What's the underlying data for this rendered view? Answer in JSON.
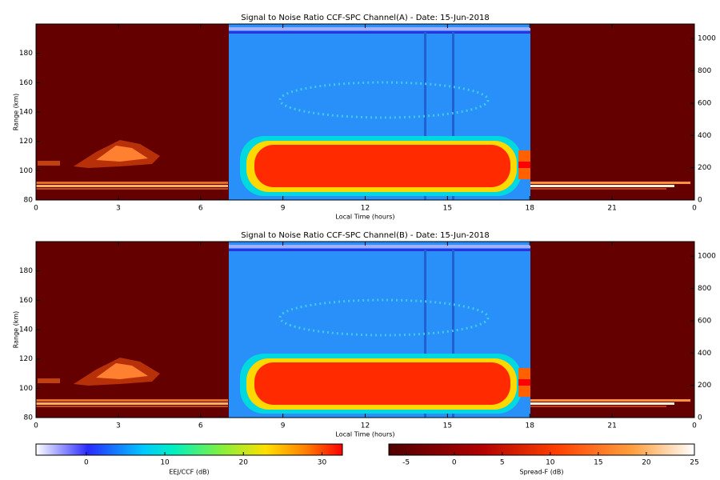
{
  "chart_data": [
    {
      "type": "heatmap",
      "title": "Signal to Noise Ratio CCF-SPC Channel(A) - Date: 15-Jun-2018",
      "xlabel": "Local Time (hours)",
      "ylabel": "Range (km)",
      "xlim": [
        0,
        24
      ],
      "xticks": [
        0,
        3,
        6,
        9,
        12,
        15,
        18,
        21,
        {
          "value": 24,
          "label": "0"
        }
      ],
      "ylim": [
        80,
        200
      ],
      "yticks": [
        80,
        100,
        120,
        140,
        160,
        180
      ],
      "y2lim": [
        0,
        1090
      ],
      "y2ticks": [
        0,
        200,
        400,
        600,
        800,
        1000
      ]
    },
    {
      "type": "heatmap",
      "title": "Signal to Noise Ratio CCF-SPC Channel(B) - Date: 15-Jun-2018",
      "xlabel": "Local Time (hours)",
      "ylabel": "Range (km)",
      "xlim": [
        0,
        24
      ],
      "xticks": [
        0,
        3,
        6,
        9,
        12,
        15,
        18,
        21,
        {
          "value": 24,
          "label": "0"
        }
      ],
      "ylim": [
        80,
        200
      ],
      "yticks": [
        80,
        100,
        120,
        140,
        160,
        180
      ],
      "y2lim": [
        0,
        1090
      ],
      "y2ticks": [
        0,
        200,
        400,
        600,
        800,
        1000
      ]
    }
  ],
  "colorbars": [
    {
      "label": "EEJ/CCF (dB)",
      "lim": [
        -6.4,
        32.6
      ],
      "ticks": [
        0,
        10,
        20,
        30
      ]
    },
    {
      "label": "Spread-F (dB)",
      "lim": [
        -6.8,
        25
      ],
      "ticks": [
        -5,
        0,
        5,
        10,
        15,
        20,
        25
      ]
    }
  ]
}
